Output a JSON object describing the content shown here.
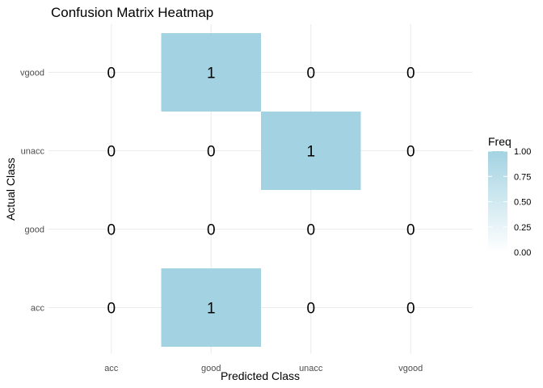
{
  "chart_data": {
    "type": "heatmap",
    "title": "Confusion Matrix Heatmap",
    "xlabel": "Predicted Class",
    "ylabel": "Actual Class",
    "x_categories": [
      "acc",
      "good",
      "unacc",
      "vgood"
    ],
    "y_categories": [
      "acc",
      "good",
      "unacc",
      "vgood"
    ],
    "cells": [
      {
        "x": "acc",
        "y": "vgood",
        "value": 0
      },
      {
        "x": "good",
        "y": "vgood",
        "value": 1
      },
      {
        "x": "unacc",
        "y": "vgood",
        "value": 0
      },
      {
        "x": "vgood",
        "y": "vgood",
        "value": 0
      },
      {
        "x": "acc",
        "y": "unacc",
        "value": 0
      },
      {
        "x": "good",
        "y": "unacc",
        "value": 0
      },
      {
        "x": "unacc",
        "y": "unacc",
        "value": 1
      },
      {
        "x": "vgood",
        "y": "unacc",
        "value": 0
      },
      {
        "x": "acc",
        "y": "good",
        "value": 0
      },
      {
        "x": "good",
        "y": "good",
        "value": 0
      },
      {
        "x": "unacc",
        "y": "good",
        "value": 0
      },
      {
        "x": "vgood",
        "y": "good",
        "value": 0
      },
      {
        "x": "acc",
        "y": "acc",
        "value": 0
      },
      {
        "x": "good",
        "y": "acc",
        "value": 1
      },
      {
        "x": "unacc",
        "y": "acc",
        "value": 0
      },
      {
        "x": "vgood",
        "y": "acc",
        "value": 0
      }
    ],
    "legend": {
      "title": "Freq",
      "ticks": [
        "0.00",
        "0.25",
        "0.50",
        "0.75",
        "1.00"
      ],
      "range": [
        0,
        1
      ],
      "placement": "right"
    },
    "colors": {
      "low": "#ffffff",
      "high": "#a3d3e2",
      "grid": "#ebebeb"
    },
    "grid": true
  }
}
